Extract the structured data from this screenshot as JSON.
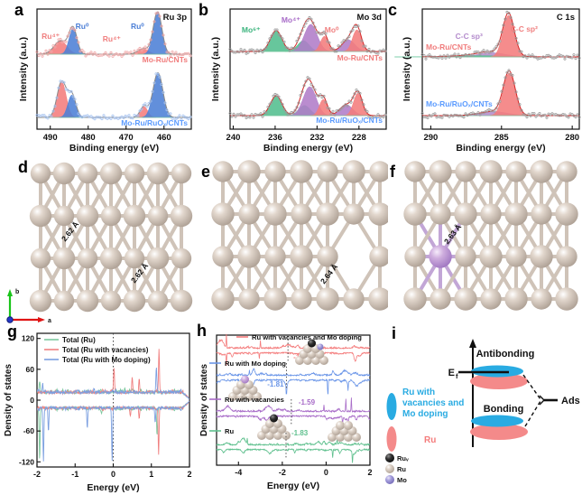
{
  "panel_a": {
    "letter": "a",
    "tag": "Ru 3p",
    "xlabel": "Binding energy (eV)",
    "ylabel": "Intensity (a.u.)",
    "x_range": [
      493.5,
      452.8
    ],
    "x_ticks": [
      "490",
      "480",
      "470",
      "460"
    ],
    "x_tick_values": [
      490,
      480,
      470,
      460
    ],
    "envelope_color": "#8a8a8a",
    "peak_labels": [
      {
        "text": "Ru⁴⁺",
        "x": 489.9,
        "up": 17,
        "color": "#f08080"
      },
      {
        "text": "Ru⁰",
        "x": 481.6,
        "up": 28,
        "color": "#4c7fd6"
      },
      {
        "text": "Ru⁴⁺",
        "x": 473.8,
        "up": 14,
        "color": "#f08080"
      },
      {
        "text": "Ru⁰",
        "x": 467.0,
        "up": 28,
        "color": "#4c7fd6"
      }
    ],
    "spectra": [
      {
        "name": "Mo-Ru/CNTs",
        "name_color": "#f07c7c",
        "point_color": "#f0a8a8",
        "baseline": 60,
        "amp": 46,
        "seed": 11,
        "name_anchor": "end",
        "name_dy": 9,
        "peaks": [
          {
            "c": 487.3,
            "h": 0.32,
            "s": 1.7,
            "color": "#f47c7c"
          },
          {
            "c": 484.0,
            "h": 0.62,
            "s": 1.05,
            "color": "#4c7fd6"
          },
          {
            "c": 465.5,
            "h": 0.13,
            "s": 1.4,
            "color": "#f47c7c"
          },
          {
            "c": 461.7,
            "h": 1.02,
            "s": 1.15,
            "color": "#4c7fd6"
          }
        ]
      },
      {
        "name": "Mo-Ru/RuOₓ/CNTs",
        "name_color": "#5b9bff",
        "point_color": "#a8c4f0",
        "baseline": 130,
        "amp": 45,
        "seed": 22,
        "name_anchor": "end",
        "name_dy": 9,
        "peaks": [
          {
            "c": 487.0,
            "h": 0.88,
            "s": 1.2,
            "color": "#f47c7c"
          },
          {
            "c": 484.3,
            "h": 0.55,
            "s": 1.05,
            "color": "#4c7fd6"
          },
          {
            "c": 465.3,
            "h": 0.27,
            "s": 1.0,
            "color": "#f47c7c"
          },
          {
            "c": 461.6,
            "h": 1.1,
            "s": 1.3,
            "color": "#4c7fd6"
          }
        ]
      }
    ]
  },
  "panel_b": {
    "letter": "b",
    "tag": "Mo 3d",
    "xlabel": "Binding energy (eV)",
    "ylabel": "Intensity (a.u.)",
    "x_range": [
      240.3,
      225.4
    ],
    "x_ticks": [
      "240",
      "236",
      "232",
      "228"
    ],
    "x_tick_values": [
      240,
      236,
      232,
      228
    ],
    "envelope_color": "#d42525",
    "peak_labels": [
      {
        "text": "Mo⁶⁺",
        "x": 238.3,
        "up": 21,
        "color": "#3cb47e"
      },
      {
        "text": "Mo⁴⁺",
        "x": 234.5,
        "up": 32,
        "color": "#a86cc8"
      },
      {
        "text": "Mo⁰",
        "x": 230.6,
        "up": 21,
        "color": "#f08080"
      }
    ],
    "spectra": [
      {
        "name": "Mo-Ru/CNTs",
        "name_color": "#f07c7c",
        "point_color": "#9a9a9a",
        "baseline": 57,
        "amp": 40,
        "seed": 33,
        "name_anchor": "end",
        "name_dy": 10,
        "peaks": [
          {
            "c": 235.9,
            "h": 0.58,
            "s": 0.55,
            "color": "#52be8e"
          },
          {
            "c": 233.3,
            "h": 0.3,
            "s": 0.55,
            "color": "#52be8e"
          },
          {
            "c": 232.6,
            "h": 0.75,
            "s": 0.62,
            "color": "#b07cc8"
          },
          {
            "c": 229.0,
            "h": 0.32,
            "s": 0.62,
            "color": "#b07cc8"
          },
          {
            "c": 231.3,
            "h": 0.42,
            "s": 0.38,
            "color": "#f47c7c"
          },
          {
            "c": 228.2,
            "h": 0.6,
            "s": 0.42,
            "color": "#f47c7c"
          }
        ]
      },
      {
        "name": "Mo-Ru/RuOₓ/CNTs",
        "name_color": "#5b9bff",
        "point_color": "#9a9a9a",
        "baseline": 128,
        "amp": 40,
        "seed": 44,
        "name_anchor": "end",
        "name_dy": 8,
        "peaks": [
          {
            "c": 235.9,
            "h": 0.55,
            "s": 0.55,
            "color": "#52be8e"
          },
          {
            "c": 233.2,
            "h": 0.28,
            "s": 0.55,
            "color": "#52be8e"
          },
          {
            "c": 232.7,
            "h": 0.8,
            "s": 0.62,
            "color": "#b07cc8"
          },
          {
            "c": 229.2,
            "h": 0.3,
            "s": 0.62,
            "color": "#b07cc8"
          },
          {
            "c": 231.4,
            "h": 0.45,
            "s": 0.38,
            "color": "#f47c7c"
          },
          {
            "c": 228.1,
            "h": 0.62,
            "s": 0.42,
            "color": "#f47c7c"
          }
        ]
      }
    ]
  },
  "panel_c": {
    "letter": "c",
    "tag": "C 1s",
    "xlabel": "Binding energy (eV)",
    "ylabel": "Intensity (a.u.)",
    "x_range": [
      290.6,
      279.5
    ],
    "x_ticks": [
      "290",
      "285",
      "280"
    ],
    "x_tick_values": [
      290,
      285,
      280
    ],
    "envelope_color": "#d42525",
    "peak_labels": [
      {
        "text": "C-C sp³",
        "x": 287.3,
        "up": 20,
        "color": "#b48ccc"
      },
      {
        "text": "C-C sp²",
        "x": 283.4,
        "up": 28,
        "color": "#f08080"
      }
    ],
    "spectra": [
      {
        "name": "Mo-Ru/CNTs",
        "name_color": "#f07c7c",
        "point_color": "#9a9a9a",
        "baseline": 63,
        "amp": 46,
        "seed": 55,
        "name_anchor": "start",
        "name_dy": -8,
        "peaks": [
          {
            "c": 285.7,
            "h": 0.1,
            "s": 1.0,
            "color": "#b48ccc"
          },
          {
            "c": 286.8,
            "h": 0.03,
            "s": 1.8,
            "color": "#52be8e"
          },
          {
            "c": 284.5,
            "h": 1.0,
            "s": 0.4,
            "color": "#f47c7c"
          }
        ]
      },
      {
        "name": "Mo-Ru/RuOₓ/CNTs",
        "name_color": "#5b9bff",
        "point_color": "#9a9a9a",
        "baseline": 128,
        "amp": 45,
        "seed": 66,
        "name_anchor": "start",
        "name_dy": -10,
        "peaks": [
          {
            "c": 285.6,
            "h": 0.1,
            "s": 1.0,
            "color": "#b48ccc"
          },
          {
            "c": 284.45,
            "h": 1.05,
            "s": 0.42,
            "color": "#f47c7c"
          }
        ]
      }
    ]
  },
  "panel_d": {
    "letter": "d",
    "bond_labels": [
      "2.62 Å",
      "2.62 Å"
    ]
  },
  "panel_e": {
    "letter": "e",
    "bond_labels": [
      "2.64 Å"
    ],
    "vacancy": [
      2,
      5
    ]
  },
  "panel_f": {
    "letter": "f",
    "bond_labels": [
      "2.63 Å"
    ],
    "dopant": [
      2,
      1
    ]
  },
  "triad": {
    "x_label": "a",
    "y_label": "b"
  },
  "panel_g": {
    "letter": "g",
    "xlabel": "Energy (eV)",
    "ylabel": "Density of states",
    "x_range": [
      -2,
      2
    ],
    "y_max": 130,
    "x_ticks": [
      "-2",
      "-1",
      "0",
      "1",
      "2"
    ],
    "x_tick_values": [
      -2,
      -1,
      0,
      1,
      2
    ],
    "y_ticks": [
      "120",
      "60",
      "0",
      "-60",
      "-120"
    ],
    "y_tick_values": [
      120,
      60,
      0,
      -60,
      -120
    ],
    "series": [
      {
        "name": "Total (Ru)",
        "color": "#7cc89e",
        "seed": 5,
        "spikes_up": [
          [
            -1.93,
            20
          ],
          [
            0.3,
            6
          ]
        ],
        "spikes_dn": [
          [
            -1.93,
            100
          ],
          [
            1.15,
            55
          ],
          [
            -0.3,
            10
          ]
        ]
      },
      {
        "name": "Total (Ru with vacancies)",
        "color": "#f08080",
        "seed": 15,
        "spikes_up": [
          [
            0.02,
            50
          ],
          [
            0.5,
            30
          ],
          [
            0.68,
            28
          ],
          [
            1.2,
            85
          ]
        ],
        "spikes_dn": [
          [
            0.68,
            22
          ],
          [
            1.19,
            92
          ],
          [
            0.45,
            15
          ]
        ]
      },
      {
        "name": "Total (Ru with Mo doping)",
        "color": "#7b9fe0",
        "seed": 25,
        "spikes_up": [
          [
            -1.85,
            15
          ],
          [
            1.13,
            48
          ],
          [
            -0.5,
            8
          ]
        ],
        "spikes_dn": [
          [
            -1.83,
            105
          ],
          [
            -1.7,
            45
          ],
          [
            -0.68,
            40
          ],
          [
            -0.03,
            100
          ],
          [
            1.1,
            28
          ]
        ]
      }
    ]
  },
  "panel_h": {
    "letter": "h",
    "xlabel": "Energy (eV)",
    "ylabel": "Density of states",
    "x_range": [
      -5,
      2
    ],
    "x_ticks": [
      "-4",
      "-2",
      "0",
      "2"
    ],
    "x_tick_values": [
      -4,
      -2,
      0,
      2
    ],
    "traces": [
      {
        "name": "Ru with vacancies and Mo doping",
        "color": "#f47c7c",
        "dband": "-1.74",
        "dband_value": -1.74,
        "seed": 7,
        "spikes_up": [
          [
            -4.55,
            15
          ],
          [
            -3.0,
            8
          ]
        ],
        "spikes_dn": [
          [
            -4.55,
            13
          ],
          [
            -3.05,
            7
          ]
        ]
      },
      {
        "name": "Ru with Mo doping",
        "color": "#6b96e8",
        "dband": "-1.81",
        "dband_value": -1.81,
        "seed": 17,
        "spikes_up": [
          [
            -3.5,
            6
          ]
        ],
        "spikes_dn": [
          [
            -1.81,
            26
          ],
          [
            0.08,
            24
          ],
          [
            1.0,
            9
          ]
        ]
      },
      {
        "name": "Ru with vacancies",
        "color": "#a86cc8",
        "dband": "-1.59",
        "dband_value": -1.59,
        "seed": 27,
        "spikes_up": [
          [
            0.9,
            13
          ],
          [
            1.15,
            15
          ],
          [
            -0.1,
            7
          ]
        ],
        "spikes_dn": [
          [
            1.0,
            10
          ],
          [
            0.75,
            8
          ]
        ]
      },
      {
        "name": "Ru",
        "color": "#5fc08e",
        "dband": "-1.83",
        "dband_value": -1.83,
        "seed": 37,
        "spikes_up": [
          [
            -3.6,
            7
          ],
          [
            0.5,
            5
          ]
        ],
        "spikes_dn": [
          [
            0.3,
            9
          ],
          [
            1.2,
            11
          ]
        ]
      }
    ]
  },
  "panel_i": {
    "letter": "i",
    "antibonding": "Antibonding",
    "bonding": "Bonding",
    "ef_main": "E",
    "ef_sub": "f",
    "ads": "Ads",
    "blue": "#29abe2",
    "pink": "#f48a8a",
    "legend_blue_lines": [
      "Ru with",
      "vacancies and",
      "Mo doping"
    ],
    "legend_red": "Ru",
    "atom_legend": [
      {
        "label": "Ruᵥ",
        "kind": "black"
      },
      {
        "label": "Ru",
        "kind": "tan"
      },
      {
        "label": "Mo",
        "kind": "mo"
      }
    ]
  }
}
